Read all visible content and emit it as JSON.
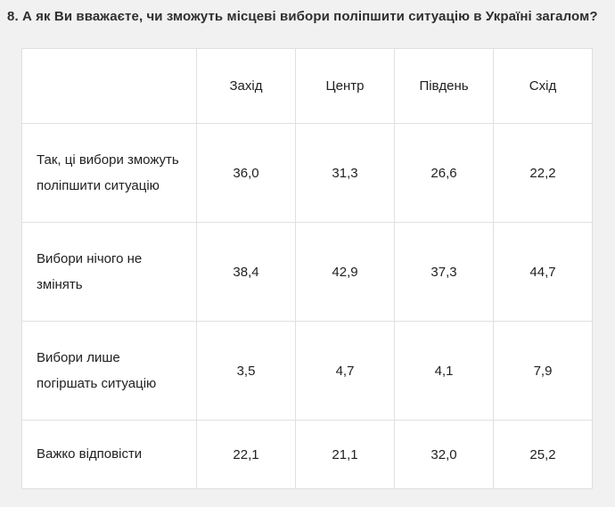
{
  "title": "8. А як Ви вважаєте, чи зможуть місцеві вибори поліпшити ситуацію в Україні загалом?",
  "table": {
    "columns": [
      "Захід",
      "Центр",
      "Південь",
      "Схід"
    ],
    "rows": [
      {
        "label": "Так, ці вибори зможуть поліпшити ситуацію",
        "values": [
          "36,0",
          "31,3",
          "26,6",
          "22,2"
        ]
      },
      {
        "label": "Вибори нічого не змінять",
        "values": [
          "38,4",
          "42,9",
          "37,3",
          "44,7"
        ]
      },
      {
        "label": "Вибори лише погіршать ситуацію",
        "values": [
          "3,5",
          "4,7",
          "4,1",
          "7,9"
        ]
      },
      {
        "label": "Важко відповісти",
        "values": [
          "22,1",
          "21,1",
          "32,0",
          "25,2"
        ]
      }
    ]
  },
  "chart_data": {
    "type": "table",
    "title": "8. А як Ви вважаєте, чи зможуть місцеві вибори поліпшити ситуацію в Україні загалом?",
    "categories": [
      "Захід",
      "Центр",
      "Південь",
      "Схід"
    ],
    "series": [
      {
        "name": "Так, ці вибори зможуть поліпшити ситуацію",
        "values": [
          36.0,
          31.3,
          26.6,
          22.2
        ]
      },
      {
        "name": "Вибори нічого не змінять",
        "values": [
          38.4,
          42.9,
          37.3,
          44.7
        ]
      },
      {
        "name": "Вибори лише погіршать ситуацію",
        "values": [
          3.5,
          4.7,
          4.1,
          7.9
        ]
      },
      {
        "name": "Важко відповісти",
        "values": [
          22.1,
          21.1,
          32.0,
          25.2
        ]
      }
    ]
  },
  "colors": {
    "page_background": "#f1f1f1",
    "table_background": "#ffffff",
    "border": "#e0e0e0",
    "text": "#212121"
  }
}
